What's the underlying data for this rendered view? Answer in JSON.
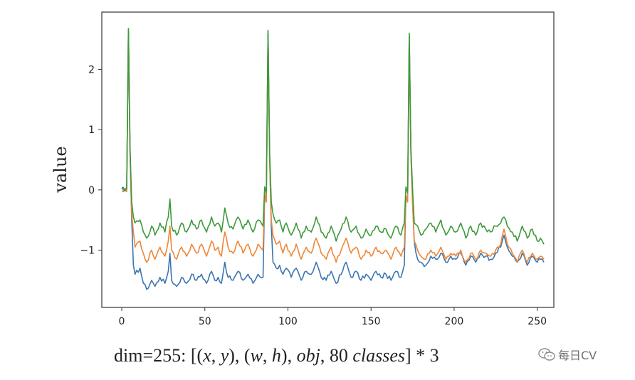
{
  "chart_data": {
    "type": "line",
    "title": "",
    "xlabel": "",
    "ylabel": "value",
    "xlim": [
      -12,
      260
    ],
    "ylim": [
      -1.95,
      2.95
    ],
    "xticks": [
      0,
      50,
      100,
      150,
      200,
      250
    ],
    "yticks": [
      -1,
      0,
      1,
      2
    ],
    "grid": false,
    "legend": null,
    "x_range": [
      0,
      254
    ],
    "series": [
      {
        "name": "blue",
        "color": "#3b75b1",
        "anchors": [
          [
            0,
            0.04
          ],
          [
            2,
            -0.02
          ],
          [
            3,
            0.05
          ],
          [
            4,
            2.65
          ],
          [
            5,
            0.6
          ],
          [
            6,
            -0.5
          ],
          [
            7,
            -1.25
          ],
          [
            8,
            -1.4
          ],
          [
            11,
            -1.3
          ],
          [
            13,
            -1.55
          ],
          [
            15,
            -1.65
          ],
          [
            18,
            -1.5
          ],
          [
            20,
            -1.6
          ],
          [
            23,
            -1.45
          ],
          [
            26,
            -1.55
          ],
          [
            28,
            -1.35
          ],
          [
            29,
            -1.05
          ],
          [
            30,
            -1.5
          ],
          [
            33,
            -1.6
          ],
          [
            36,
            -1.45
          ],
          [
            39,
            -1.55
          ],
          [
            42,
            -1.4
          ],
          [
            45,
            -1.5
          ],
          [
            48,
            -1.4
          ],
          [
            51,
            -1.55
          ],
          [
            54,
            -1.35
          ],
          [
            56,
            -1.5
          ],
          [
            58,
            -1.45
          ],
          [
            60,
            -1.55
          ],
          [
            62,
            -1.2
          ],
          [
            64,
            -1.45
          ],
          [
            67,
            -1.5
          ],
          [
            70,
            -1.35
          ],
          [
            73,
            -1.5
          ],
          [
            76,
            -1.4
          ],
          [
            79,
            -1.55
          ],
          [
            82,
            -1.4
          ],
          [
            85,
            -1.45
          ],
          [
            86,
            -0.05
          ],
          [
            87,
            -0.2
          ],
          [
            88,
            2.6
          ],
          [
            89,
            0.5
          ],
          [
            90,
            -0.6
          ],
          [
            91,
            -1.2
          ],
          [
            93,
            -1.3
          ],
          [
            95,
            -1.25
          ],
          [
            97,
            -1.4
          ],
          [
            99,
            -1.3
          ],
          [
            102,
            -1.45
          ],
          [
            105,
            -1.3
          ],
          [
            108,
            -1.5
          ],
          [
            111,
            -1.35
          ],
          [
            114,
            -1.4
          ],
          [
            117,
            -1.2
          ],
          [
            120,
            -1.45
          ],
          [
            123,
            -1.5
          ],
          [
            126,
            -1.35
          ],
          [
            129,
            -1.55
          ],
          [
            132,
            -1.4
          ],
          [
            135,
            -1.2
          ],
          [
            138,
            -1.45
          ],
          [
            141,
            -1.35
          ],
          [
            144,
            -1.5
          ],
          [
            147,
            -1.4
          ],
          [
            150,
            -1.5
          ],
          [
            153,
            -1.35
          ],
          [
            156,
            -1.45
          ],
          [
            159,
            -1.4
          ],
          [
            162,
            -1.5
          ],
          [
            165,
            -1.35
          ],
          [
            168,
            -1.45
          ],
          [
            170,
            -1.25
          ],
          [
            171,
            -0.1
          ],
          [
            172,
            -0.2
          ],
          [
            173,
            2.55
          ],
          [
            174,
            0.6
          ],
          [
            175,
            -0.2
          ],
          [
            176,
            -0.85
          ],
          [
            178,
            -1.15
          ],
          [
            180,
            -1.2
          ],
          [
            183,
            -1.25
          ],
          [
            186,
            -1.1
          ],
          [
            189,
            -1.15
          ],
          [
            192,
            -1.05
          ],
          [
            195,
            -1.2
          ],
          [
            198,
            -1.1
          ],
          [
            201,
            -1.15
          ],
          [
            204,
            -1.05
          ],
          [
            207,
            -1.25
          ],
          [
            210,
            -1.1
          ],
          [
            213,
            -1.2
          ],
          [
            216,
            -1.05
          ],
          [
            219,
            -1.1
          ],
          [
            222,
            -1.15
          ],
          [
            225,
            -1.05
          ],
          [
            228,
            -0.95
          ],
          [
            230,
            -0.75
          ],
          [
            232,
            -0.95
          ],
          [
            235,
            -1.1
          ],
          [
            238,
            -1.2
          ],
          [
            241,
            -1.05
          ],
          [
            244,
            -1.25
          ],
          [
            247,
            -1.1
          ],
          [
            250,
            -1.2
          ],
          [
            252,
            -1.15
          ],
          [
            254,
            -1.2
          ]
        ]
      },
      {
        "name": "orange",
        "color": "#ef8636",
        "anchors": [
          [
            0,
            -0.02
          ],
          [
            2,
            0.02
          ],
          [
            3,
            -0.03
          ],
          [
            4,
            2.65
          ],
          [
            5,
            0.6
          ],
          [
            6,
            -0.4
          ],
          [
            7,
            -0.7
          ],
          [
            8,
            -0.95
          ],
          [
            11,
            -0.85
          ],
          [
            13,
            -1.05
          ],
          [
            15,
            -1.2
          ],
          [
            18,
            -1.0
          ],
          [
            20,
            -1.15
          ],
          [
            23,
            -0.95
          ],
          [
            26,
            -1.1
          ],
          [
            28,
            -0.85
          ],
          [
            29,
            -0.6
          ],
          [
            30,
            -1.0
          ],
          [
            33,
            -1.15
          ],
          [
            36,
            -0.95
          ],
          [
            39,
            -1.1
          ],
          [
            42,
            -0.9
          ],
          [
            45,
            -1.05
          ],
          [
            48,
            -0.9
          ],
          [
            51,
            -1.1
          ],
          [
            54,
            -0.85
          ],
          [
            56,
            -1.0
          ],
          [
            58,
            -0.95
          ],
          [
            60,
            -1.1
          ],
          [
            62,
            -0.7
          ],
          [
            64,
            -0.95
          ],
          [
            67,
            -1.05
          ],
          [
            70,
            -0.85
          ],
          [
            73,
            -1.05
          ],
          [
            76,
            -0.9
          ],
          [
            79,
            -1.1
          ],
          [
            82,
            -0.9
          ],
          [
            85,
            -1.0
          ],
          [
            86,
            -0.05
          ],
          [
            87,
            -0.2
          ],
          [
            88,
            2.6
          ],
          [
            89,
            0.5
          ],
          [
            90,
            -0.5
          ],
          [
            91,
            -0.75
          ],
          [
            93,
            -0.9
          ],
          [
            95,
            -0.85
          ],
          [
            97,
            -1.05
          ],
          [
            99,
            -0.9
          ],
          [
            102,
            -1.1
          ],
          [
            105,
            -0.9
          ],
          [
            108,
            -1.15
          ],
          [
            111,
            -0.95
          ],
          [
            114,
            -1.05
          ],
          [
            117,
            -0.8
          ],
          [
            120,
            -1.05
          ],
          [
            123,
            -1.15
          ],
          [
            126,
            -0.95
          ],
          [
            129,
            -1.2
          ],
          [
            132,
            -1.0
          ],
          [
            135,
            -0.8
          ],
          [
            138,
            -1.05
          ],
          [
            141,
            -0.95
          ],
          [
            144,
            -1.15
          ],
          [
            147,
            -1.0
          ],
          [
            150,
            -1.1
          ],
          [
            153,
            -0.95
          ],
          [
            156,
            -1.05
          ],
          [
            159,
            -1.0
          ],
          [
            162,
            -1.15
          ],
          [
            165,
            -0.95
          ],
          [
            168,
            -1.1
          ],
          [
            170,
            -0.95
          ],
          [
            171,
            -0.1
          ],
          [
            172,
            -0.2
          ],
          [
            173,
            2.55
          ],
          [
            174,
            0.6
          ],
          [
            175,
            -0.25
          ],
          [
            176,
            -0.85
          ],
          [
            178,
            -1.0
          ],
          [
            180,
            -1.1
          ],
          [
            183,
            -1.15
          ],
          [
            186,
            -1.0
          ],
          [
            189,
            -1.1
          ],
          [
            192,
            -0.95
          ],
          [
            195,
            -1.15
          ],
          [
            198,
            -1.05
          ],
          [
            201,
            -1.1
          ],
          [
            204,
            -1.0
          ],
          [
            207,
            -1.2
          ],
          [
            210,
            -1.05
          ],
          [
            213,
            -1.15
          ],
          [
            216,
            -1.0
          ],
          [
            219,
            -1.05
          ],
          [
            222,
            -1.1
          ],
          [
            225,
            -1.0
          ],
          [
            228,
            -0.9
          ],
          [
            230,
            -0.65
          ],
          [
            232,
            -0.9
          ],
          [
            235,
            -1.05
          ],
          [
            238,
            -1.2
          ],
          [
            241,
            -1.0
          ],
          [
            244,
            -1.2
          ],
          [
            247,
            -1.05
          ],
          [
            250,
            -1.15
          ],
          [
            252,
            -1.1
          ],
          [
            254,
            -1.15
          ]
        ]
      },
      {
        "name": "green",
        "color": "#3c9a3a",
        "anchors": [
          [
            0,
            0.03
          ],
          [
            2,
            -0.01
          ],
          [
            3,
            0.02
          ],
          [
            4,
            2.68
          ],
          [
            5,
            0.7
          ],
          [
            6,
            -0.2
          ],
          [
            7,
            -0.45
          ],
          [
            8,
            -0.55
          ],
          [
            11,
            -0.5
          ],
          [
            13,
            -0.7
          ],
          [
            15,
            -0.8
          ],
          [
            18,
            -0.6
          ],
          [
            20,
            -0.75
          ],
          [
            23,
            -0.55
          ],
          [
            26,
            -0.7
          ],
          [
            28,
            -0.45
          ],
          [
            29,
            -0.15
          ],
          [
            30,
            -0.6
          ],
          [
            33,
            -0.75
          ],
          [
            36,
            -0.55
          ],
          [
            39,
            -0.7
          ],
          [
            42,
            -0.5
          ],
          [
            45,
            -0.65
          ],
          [
            48,
            -0.5
          ],
          [
            51,
            -0.7
          ],
          [
            54,
            -0.45
          ],
          [
            56,
            -0.6
          ],
          [
            58,
            -0.55
          ],
          [
            60,
            -0.7
          ],
          [
            62,
            -0.3
          ],
          [
            64,
            -0.55
          ],
          [
            67,
            -0.65
          ],
          [
            70,
            -0.45
          ],
          [
            73,
            -0.65
          ],
          [
            76,
            -0.5
          ],
          [
            79,
            -0.7
          ],
          [
            82,
            -0.5
          ],
          [
            85,
            -0.6
          ],
          [
            86,
            0.05
          ],
          [
            87,
            -0.05
          ],
          [
            88,
            2.65
          ],
          [
            89,
            0.6
          ],
          [
            90,
            -0.2
          ],
          [
            91,
            -0.4
          ],
          [
            93,
            -0.55
          ],
          [
            95,
            -0.5
          ],
          [
            97,
            -0.7
          ],
          [
            99,
            -0.55
          ],
          [
            102,
            -0.75
          ],
          [
            105,
            -0.55
          ],
          [
            108,
            -0.8
          ],
          [
            111,
            -0.6
          ],
          [
            114,
            -0.7
          ],
          [
            117,
            -0.45
          ],
          [
            120,
            -0.7
          ],
          [
            123,
            -0.8
          ],
          [
            126,
            -0.6
          ],
          [
            129,
            -0.85
          ],
          [
            132,
            -0.65
          ],
          [
            135,
            -0.45
          ],
          [
            138,
            -0.7
          ],
          [
            141,
            -0.6
          ],
          [
            144,
            -0.8
          ],
          [
            147,
            -0.65
          ],
          [
            150,
            -0.75
          ],
          [
            153,
            -0.6
          ],
          [
            156,
            -0.7
          ],
          [
            159,
            -0.65
          ],
          [
            162,
            -0.8
          ],
          [
            165,
            -0.6
          ],
          [
            168,
            -0.75
          ],
          [
            170,
            -0.55
          ],
          [
            171,
            0.05
          ],
          [
            172,
            -0.05
          ],
          [
            173,
            2.6
          ],
          [
            174,
            0.7
          ],
          [
            175,
            0.0
          ],
          [
            176,
            -0.55
          ],
          [
            178,
            -0.6
          ],
          [
            180,
            -0.75
          ],
          [
            183,
            -0.65
          ],
          [
            186,
            -0.55
          ],
          [
            189,
            -0.7
          ],
          [
            192,
            -0.5
          ],
          [
            195,
            -0.75
          ],
          [
            198,
            -0.6
          ],
          [
            201,
            -0.7
          ],
          [
            204,
            -0.55
          ],
          [
            207,
            -0.8
          ],
          [
            210,
            -0.6
          ],
          [
            213,
            -0.75
          ],
          [
            216,
            -0.55
          ],
          [
            219,
            -0.65
          ],
          [
            222,
            -0.7
          ],
          [
            225,
            -0.6
          ],
          [
            228,
            -0.55
          ],
          [
            230,
            -0.45
          ],
          [
            232,
            -0.6
          ],
          [
            235,
            -0.7
          ],
          [
            238,
            -0.85
          ],
          [
            241,
            -0.6
          ],
          [
            244,
            -0.8
          ],
          [
            247,
            -0.65
          ],
          [
            250,
            -0.85
          ],
          [
            252,
            -0.8
          ],
          [
            254,
            -0.9
          ]
        ]
      }
    ]
  },
  "caption": {
    "prefix": "dim=255: [(",
    "x": "x",
    "comma1": ", ",
    "y": "y",
    "mid1": "), (",
    "w": "w",
    "comma2": ", ",
    "h": "h",
    "mid2": "), ",
    "obj": "obj",
    "mid3": ", 80 ",
    "classes": "classes",
    "suffix": "] * 3"
  },
  "watermark": {
    "icon": "wechat-icon",
    "text": "每日CV"
  }
}
